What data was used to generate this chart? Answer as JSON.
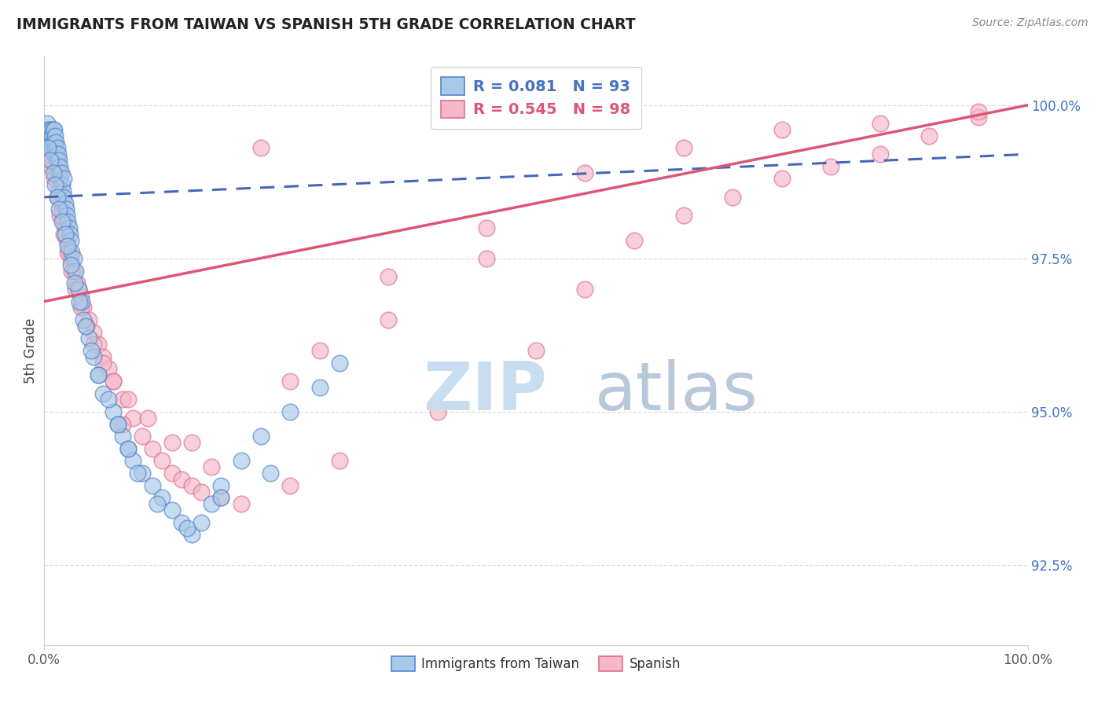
{
  "title": "IMMIGRANTS FROM TAIWAN VS SPANISH 5TH GRADE CORRELATION CHART",
  "source": "Source: ZipAtlas.com",
  "ylabel": "5th Grade",
  "ytick_labels": [
    "92.5%",
    "95.0%",
    "97.5%",
    "100.0%"
  ],
  "ytick_values": [
    92.5,
    95.0,
    97.5,
    100.0
  ],
  "xmin": 0.0,
  "xmax": 100.0,
  "ymin": 91.2,
  "ymax": 100.8,
  "legend_label1": "Immigrants from Taiwan",
  "legend_label2": "Spanish",
  "r1": 0.081,
  "n1": 93,
  "r2": 0.545,
  "n2": 98,
  "color_blue_face": "#aac8e8",
  "color_blue_edge": "#5588cc",
  "color_pink_face": "#f4b8c8",
  "color_pink_edge": "#e07090",
  "color_blue_line": "#4466bb",
  "color_pink_line": "#dd5577",
  "color_title": "#222222",
  "color_source": "#888888",
  "color_ytick": "#4472c4",
  "color_xtick": "#555555",
  "color_grid": "#dddddd",
  "color_spine": "#cccccc",
  "watermark_zip_color": "#c8ddf0",
  "watermark_atlas_color": "#b8c8d8",
  "tw_x": [
    0.2,
    0.3,
    0.3,
    0.4,
    0.5,
    0.5,
    0.6,
    0.6,
    0.7,
    0.7,
    0.8,
    0.8,
    0.9,
    0.9,
    1.0,
    1.0,
    1.0,
    1.1,
    1.1,
    1.2,
    1.2,
    1.3,
    1.3,
    1.4,
    1.4,
    1.5,
    1.5,
    1.6,
    1.6,
    1.7,
    1.8,
    1.9,
    2.0,
    2.0,
    2.1,
    2.2,
    2.3,
    2.4,
    2.5,
    2.6,
    2.7,
    2.8,
    3.0,
    3.2,
    3.5,
    3.8,
    4.0,
    4.5,
    5.0,
    5.5,
    6.0,
    7.0,
    7.5,
    8.0,
    8.5,
    9.0,
    10.0,
    11.0,
    12.0,
    13.0,
    14.0,
    15.0,
    16.0,
    17.0,
    18.0,
    20.0,
    22.0,
    25.0,
    28.0,
    30.0,
    0.4,
    0.6,
    0.9,
    1.1,
    1.3,
    1.5,
    1.8,
    2.1,
    2.4,
    2.7,
    3.1,
    3.6,
    4.2,
    4.8,
    5.5,
    6.5,
    7.5,
    8.5,
    9.5,
    11.5,
    14.5,
    18.0,
    23.0
  ],
  "tw_y": [
    99.6,
    99.5,
    99.7,
    99.4,
    99.5,
    99.6,
    99.3,
    99.5,
    99.4,
    99.6,
    99.3,
    99.5,
    99.4,
    99.6,
    99.2,
    99.4,
    99.6,
    99.3,
    99.5,
    99.2,
    99.4,
    99.1,
    99.3,
    99.0,
    99.2,
    98.9,
    99.1,
    98.8,
    99.0,
    98.9,
    98.7,
    98.6,
    98.5,
    98.8,
    98.4,
    98.3,
    98.2,
    98.1,
    98.0,
    97.9,
    97.8,
    97.6,
    97.5,
    97.3,
    97.0,
    96.8,
    96.5,
    96.2,
    95.9,
    95.6,
    95.3,
    95.0,
    94.8,
    94.6,
    94.4,
    94.2,
    94.0,
    93.8,
    93.6,
    93.4,
    93.2,
    93.0,
    93.2,
    93.5,
    93.8,
    94.2,
    94.6,
    95.0,
    95.4,
    95.8,
    99.3,
    99.1,
    98.9,
    98.7,
    98.5,
    98.3,
    98.1,
    97.9,
    97.7,
    97.4,
    97.1,
    96.8,
    96.4,
    96.0,
    95.6,
    95.2,
    94.8,
    94.4,
    94.0,
    93.5,
    93.1,
    93.6,
    94.0
  ],
  "sp_x": [
    0.2,
    0.3,
    0.4,
    0.5,
    0.5,
    0.6,
    0.7,
    0.8,
    0.9,
    1.0,
    1.0,
    1.1,
    1.2,
    1.3,
    1.4,
    1.5,
    1.6,
    1.7,
    1.8,
    1.9,
    2.0,
    2.1,
    2.2,
    2.3,
    2.5,
    2.7,
    3.0,
    3.3,
    3.7,
    4.0,
    4.5,
    5.0,
    5.5,
    6.0,
    6.5,
    7.0,
    8.0,
    9.0,
    10.0,
    11.0,
    12.0,
    13.0,
    14.0,
    15.0,
    16.0,
    18.0,
    20.0,
    25.0,
    30.0,
    40.0,
    50.0,
    55.0,
    60.0,
    65.0,
    70.0,
    75.0,
    80.0,
    85.0,
    90.0,
    95.0,
    0.3,
    0.5,
    0.7,
    1.0,
    1.3,
    1.6,
    2.0,
    2.4,
    2.8,
    3.2,
    3.7,
    4.3,
    5.0,
    6.0,
    7.0,
    8.5,
    10.5,
    13.0,
    17.0,
    22.0,
    28.0,
    35.0,
    45.0,
    55.0,
    65.0,
    75.0,
    85.0,
    95.0,
    45.0,
    35.0,
    25.0,
    15.0,
    8.0,
    3.5,
    0.8,
    0.5,
    0.4,
    0.6
  ],
  "sp_y": [
    99.6,
    99.5,
    99.4,
    99.3,
    99.5,
    99.2,
    99.3,
    99.1,
    99.2,
    99.0,
    99.2,
    98.9,
    99.0,
    98.8,
    98.7,
    98.6,
    98.5,
    98.4,
    98.3,
    98.2,
    98.1,
    98.0,
    97.9,
    97.8,
    97.6,
    97.5,
    97.3,
    97.1,
    96.9,
    96.7,
    96.5,
    96.3,
    96.1,
    95.9,
    95.7,
    95.5,
    95.2,
    94.9,
    94.6,
    94.4,
    94.2,
    94.0,
    93.9,
    93.8,
    93.7,
    93.6,
    93.5,
    93.8,
    94.2,
    95.0,
    96.0,
    97.0,
    97.8,
    98.2,
    98.5,
    98.8,
    99.0,
    99.2,
    99.5,
    99.8,
    99.4,
    99.2,
    99.0,
    98.8,
    98.5,
    98.2,
    97.9,
    97.6,
    97.3,
    97.0,
    96.7,
    96.4,
    96.1,
    95.8,
    95.5,
    95.2,
    94.9,
    94.5,
    94.1,
    99.3,
    96.0,
    97.2,
    98.0,
    98.9,
    99.3,
    99.6,
    99.7,
    99.9,
    97.5,
    96.5,
    95.5,
    94.5,
    94.8,
    97.0,
    99.1,
    99.4,
    99.5,
    99.3
  ],
  "tw_line_x": [
    0.0,
    100.0
  ],
  "tw_line_y": [
    98.5,
    99.2
  ],
  "sp_line_x": [
    0.0,
    100.0
  ],
  "sp_line_y": [
    96.8,
    100.0
  ]
}
